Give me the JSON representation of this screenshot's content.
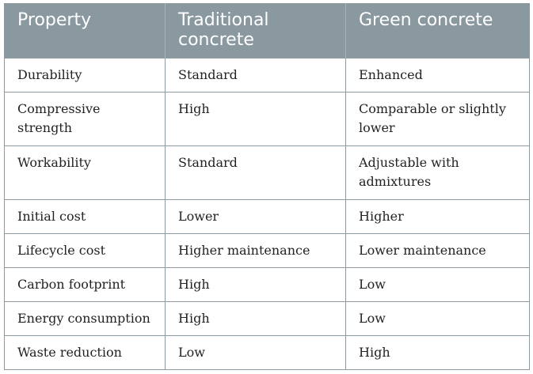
{
  "table": {
    "headers": [
      "Property",
      "Traditional concrete",
      "Green concrete"
    ],
    "rows": [
      [
        "Durability",
        "Standard",
        "Enhanced"
      ],
      [
        "Compressive strength",
        "High",
        "Comparable or slightly lower"
      ],
      [
        "Workability",
        "Standard",
        "Adjustable with admixtures"
      ],
      [
        "Initial cost",
        "Lower",
        "Higher"
      ],
      [
        "Lifecycle cost",
        "Higher maintenance",
        "Lower maintenance"
      ],
      [
        "Carbon footprint",
        "High",
        "Low"
      ],
      [
        "Energy consumption",
        "High",
        "Low"
      ],
      [
        "Waste reduction",
        "Low",
        "High"
      ]
    ]
  },
  "colors": {
    "header_bg": "#8a98a0",
    "header_text": "#ffffff",
    "border": "#8f9aa0",
    "body_text": "#222222"
  }
}
